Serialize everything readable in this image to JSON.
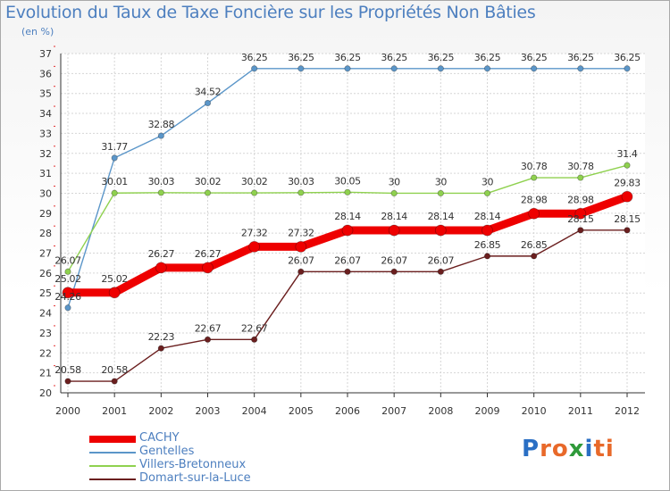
{
  "title": "Evolution du Taux de Taxe Foncière sur les Propriétés Non Bâties",
  "subtitle": "(en %)",
  "logo": {
    "text": "Proxiti",
    "colors": [
      "#2a6fc4",
      "#e8692a",
      "#e8692a",
      "#2f9a3a",
      "#2a6fc4",
      "#e8692a",
      "#e8692a"
    ]
  },
  "chart_data": {
    "type": "line",
    "title": "Evolution du Taux de Taxe Foncière sur les Propriétés Non Bâties",
    "ylabel": "(en %)",
    "xlabel": "",
    "x": [
      "2000",
      "2001",
      "2002",
      "2003",
      "2004",
      "2005",
      "2006",
      "2007",
      "2008",
      "2009",
      "2010",
      "2011",
      "2012"
    ],
    "ylim": [
      20,
      37
    ],
    "yticks": [
      "20",
      "21",
      "22",
      "23",
      "24",
      "25",
      "26",
      "27",
      "28",
      "29",
      "30",
      "31",
      "32",
      "33",
      "34",
      "35",
      "36",
      "37"
    ],
    "grid": true,
    "legend_position": "bottom-left",
    "series": [
      {
        "name": "Gentelles",
        "color": "#5b96c9",
        "values": [
          24.26,
          31.77,
          32.88,
          34.52,
          36.25,
          36.25,
          36.25,
          36.25,
          36.25,
          36.25,
          36.25,
          36.25,
          36.25
        ],
        "labels": [
          "24.26",
          "31.77",
          "32.88",
          "34.52",
          "36.25",
          "36.25",
          "36.25",
          "36.25",
          "36.25",
          "36.25",
          "36.25",
          "36.25",
          "36.25"
        ]
      },
      {
        "name": "Villers-Bretonneux",
        "color": "#8fd14f",
        "values": [
          26.07,
          30.01,
          30.03,
          30.02,
          30.02,
          30.03,
          30.05,
          30,
          30,
          30,
          30.78,
          30.78,
          31.4
        ],
        "labels": [
          "26.07",
          "30.01",
          "30.03",
          "30.02",
          "30.02",
          "30.03",
          "30.05",
          "30",
          "30",
          "30",
          "30.78",
          "30.78",
          "31.4"
        ]
      },
      {
        "name": "Domart-sur-la-Luce",
        "color": "#6b1f1f",
        "values": [
          20.58,
          20.58,
          22.23,
          22.67,
          22.67,
          26.07,
          26.07,
          26.07,
          26.07,
          26.85,
          26.85,
          28.15,
          28.15
        ],
        "labels": [
          "20.58",
          "20.58",
          "22.23",
          "22.67",
          "22.67",
          "26.07",
          "26.07",
          "26.07",
          "26.07",
          "26.85",
          "26.85",
          "28.15",
          "28.15"
        ]
      },
      {
        "name": "CACHY",
        "color": "#ee0000",
        "values": [
          25.02,
          25.02,
          26.27,
          26.27,
          27.32,
          27.32,
          28.14,
          28.14,
          28.14,
          28.14,
          28.98,
          28.98,
          29.83
        ],
        "labels": [
          "25.02",
          "25.02",
          "26.27",
          "26.27",
          "27.32",
          "27.32",
          "28.14",
          "28.14",
          "28.14",
          "28.14",
          "28.98",
          "28.98",
          "29.83"
        ]
      }
    ],
    "legend": [
      {
        "name": "CACHY",
        "color": "#ee0000"
      },
      {
        "name": "Gentelles",
        "color": "#5b96c9"
      },
      {
        "name": "Villers-Bretonneux",
        "color": "#8fd14f"
      },
      {
        "name": "Domart-sur-la-Luce",
        "color": "#6b1f1f"
      }
    ]
  }
}
